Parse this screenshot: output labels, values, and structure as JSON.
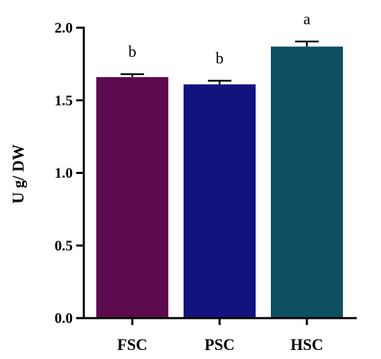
{
  "chart_data": {
    "type": "bar",
    "title": "",
    "xlabel": "",
    "ylabel": "U g/ DW",
    "ylim": [
      0,
      2.0
    ],
    "yticks": [
      "0.0",
      "0.5",
      "1.0",
      "1.5",
      "2.0"
    ],
    "grid": false,
    "categories": [
      "FSC",
      "PSC",
      "HSC"
    ],
    "values": [
      1.66,
      1.61,
      1.87
    ],
    "errors": [
      0.02,
      0.025,
      0.035
    ],
    "significance_labels": [
      "b",
      "b",
      "a"
    ],
    "colors": [
      "#5c0a4e",
      "#131380",
      "#0e4f63"
    ]
  }
}
